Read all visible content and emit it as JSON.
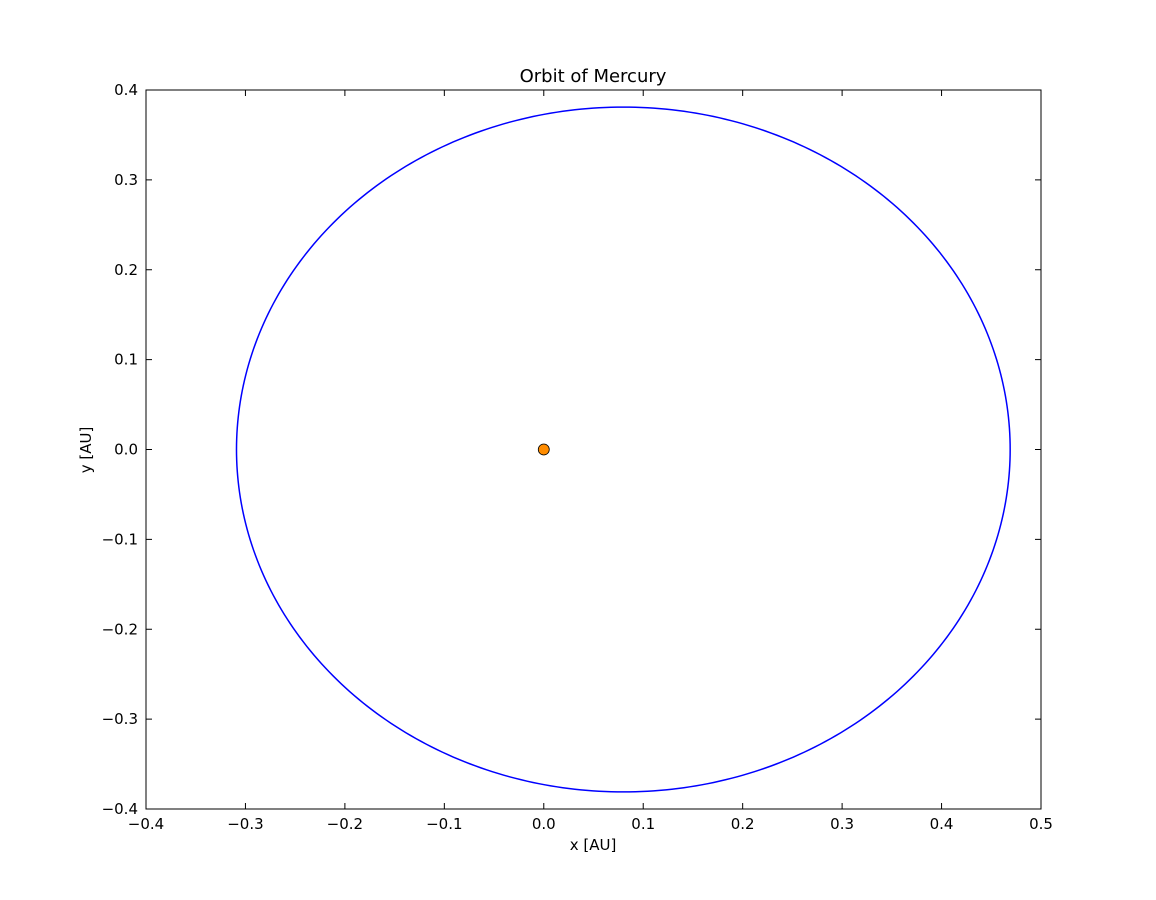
{
  "chart_data": {
    "type": "line",
    "title": "Orbit of Mercury",
    "xlabel": "x [AU]",
    "ylabel": "y [AU]",
    "xlim": [
      -0.4,
      0.5
    ],
    "ylim": [
      -0.4,
      0.4
    ],
    "xticks": [
      -0.4,
      -0.3,
      -0.2,
      -0.1,
      0.0,
      0.1,
      0.2,
      0.3,
      0.4,
      0.5
    ],
    "xtick_labels": [
      "−0.4",
      "−0.3",
      "−0.2",
      "−0.1",
      "0.0",
      "0.1",
      "0.2",
      "0.3",
      "0.4",
      "0.5"
    ],
    "yticks": [
      -0.4,
      -0.3,
      -0.2,
      -0.1,
      0.0,
      0.1,
      0.2,
      0.3,
      0.4
    ],
    "ytick_labels": [
      "−0.4",
      "−0.3",
      "−0.2",
      "−0.1",
      "0.0",
      "0.1",
      "0.2",
      "0.3",
      "0.4"
    ],
    "grid": false,
    "legend": null,
    "series": [
      {
        "kind": "ellipse-orbit",
        "color": "#0000ff",
        "center": [
          0.08,
          0.0
        ],
        "semi_major_axis": 0.389,
        "semi_minor_axis": 0.381,
        "x_range": [
          -0.309,
          0.469
        ],
        "y_range": [
          -0.381,
          0.381
        ]
      }
    ],
    "markers": [
      {
        "kind": "sun",
        "x": 0.0,
        "y": 0.0,
        "color": "#ff8c00",
        "edge_color": "#000000"
      }
    ]
  }
}
